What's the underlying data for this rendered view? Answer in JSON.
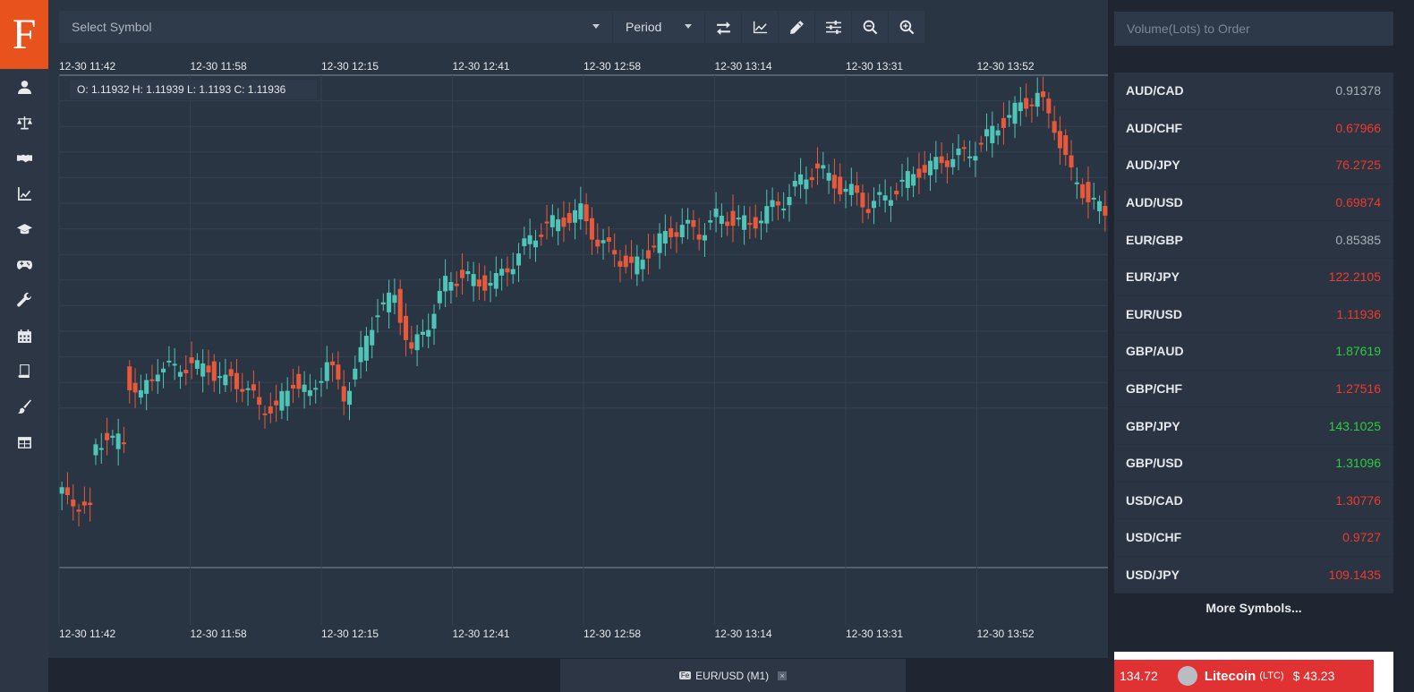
{
  "logo": {
    "letter": "F"
  },
  "sidebar": {
    "items": [
      {
        "icon": "user-icon"
      },
      {
        "icon": "balance-scale-icon"
      },
      {
        "icon": "handshake-icon"
      },
      {
        "icon": "line-chart-icon"
      },
      {
        "icon": "graduation-cap-icon"
      },
      {
        "icon": "gamepad-icon"
      },
      {
        "icon": "wrench-icon"
      },
      {
        "icon": "calendar-icon"
      },
      {
        "icon": "book-icon"
      },
      {
        "icon": "paint-brush-icon"
      },
      {
        "icon": "table-icon"
      }
    ]
  },
  "toolbar": {
    "symbol_placeholder": "Select Symbol",
    "period_label": "Period",
    "buttons": [
      {
        "icon": "swap-arrows-icon"
      },
      {
        "icon": "area-chart-icon"
      },
      {
        "icon": "pencil-icon"
      },
      {
        "icon": "sliders-icon"
      },
      {
        "icon": "zoom-out-icon"
      },
      {
        "icon": "zoom-in-icon"
      }
    ]
  },
  "chart": {
    "ohlc_text": "O: 1.11932 H: 1.11939 L: 1.1193 C: 1.11936",
    "tab_label": "EUR/USD (M1)",
    "tab_badge": "Fe",
    "tab_close": "×",
    "colors": {
      "up": "#4ec5b6",
      "down": "#e8583a",
      "bg": "#2a3544",
      "grid": "#34404f",
      "line": "#7e8b99"
    }
  },
  "chart_data": {
    "type": "candlestick",
    "series_name": "EUR/USD (M1)",
    "x_tick_labels": [
      "12-30 11:42",
      "12-30 11:58",
      "12-30 12:15",
      "12-30 12:41",
      "12-30 12:58",
      "12-30 13:14",
      "12-30 13:31",
      "12-30 13:52"
    ],
    "y_axis_visible": false,
    "grid": true,
    "last_candle": {
      "open": 1.11932,
      "high": 1.11939,
      "low": 1.1193,
      "close": 1.11936
    },
    "relative_ohlc": [
      [
        -0.13,
        -0.24,
        -0.24,
        -0.15
      ],
      [
        -0.16,
        -0.22,
        -0.22,
        -0.2
      ],
      [
        0.03,
        0.06,
        0.08,
        0.08
      ],
      [
        0.06,
        0.31,
        0.3,
        0.06
      ],
      [
        0.3,
        0.3,
        0.22,
        0.22
      ],
      [
        0.22,
        0.25,
        0.33,
        0.33
      ],
      [
        0.33,
        0.36,
        0.45,
        0.32
      ],
      [
        0.32,
        0.36,
        0.36,
        0.34
      ],
      [
        0.32,
        0.34,
        0.33,
        0.33
      ],
      [
        0.32,
        0.3,
        0.34,
        0.27
      ],
      [
        0.3,
        0.31,
        0.21,
        0.26
      ],
      [
        0.26,
        0.33,
        0.25,
        0.19
      ],
      [
        0.19,
        0.23,
        0.17,
        0.17
      ],
      [
        0.18,
        0.28,
        0.32,
        0.28
      ],
      [
        0.28,
        0.27,
        0.22,
        0.22
      ],
      [
        0.22,
        0.34,
        0.45,
        0.35
      ],
      [
        0.35,
        0.38,
        0.33,
        0.22
      ],
      [
        0.22,
        0.36,
        0.35,
        0.37
      ],
      [
        0.37,
        0.39,
        0.49,
        0.54
      ],
      [
        0.54,
        0.6,
        0.51,
        0.58
      ],
      [
        0.58,
        0.57,
        0.44,
        0.38
      ],
      [
        0.38,
        0.38,
        0.38,
        0.49
      ],
      [
        0.49,
        0.51,
        0.54,
        0.63
      ],
      [
        0.63,
        0.66,
        0.59,
        0.66
      ],
      [
        0.66,
        0.66,
        0.63,
        0.63
      ],
      [
        0.63,
        0.63,
        0.58,
        0.64
      ],
      [
        0.64,
        0.71,
        0.69,
        0.71
      ],
      [
        0.71,
        0.76,
        0.73,
        0.79
      ],
      [
        0.79,
        0.8,
        0.78,
        0.84
      ],
      [
        0.84,
        0.84,
        0.86,
        0.86
      ],
      [
        0.86,
        0.86,
        0.89,
        0.89
      ],
      [
        0.89,
        0.86,
        0.8,
        0.78
      ],
      [
        0.78,
        0.73,
        0.73,
        0.74
      ],
      [
        0.74,
        0.72,
        0.68,
        0.68
      ],
      [
        0.68,
        0.68,
        0.76,
        0.75
      ],
      [
        0.75,
        0.78,
        0.78,
        0.8
      ],
      [
        0.8,
        0.8,
        0.83,
        0.84
      ],
      [
        0.84,
        0.83,
        0.85,
        0.81
      ],
      [
        0.81,
        0.83,
        0.81,
        0.87
      ],
      [
        0.87,
        0.86,
        0.86,
        0.86
      ],
      [
        0.86,
        0.87,
        0.84,
        0.84
      ],
      [
        0.84,
        0.86,
        0.86,
        0.89
      ],
      [
        0.89,
        0.92,
        0.89,
        0.93
      ],
      [
        0.93,
        0.95,
        0.98,
        1.0
      ],
      [
        1.0,
        1.03,
        1.0,
        1.05
      ],
      [
        1.05,
        1.05,
        1.03,
        0.99
      ],
      [
        0.99,
        0.99,
        0.97,
        0.96
      ],
      [
        0.96,
        0.92,
        0.9,
        0.91
      ],
      [
        0.91,
        0.89,
        0.92,
        0.94
      ],
      [
        0.94,
        0.95,
        0.96,
        0.99
      ],
      [
        0.99,
        1.02,
        0.98,
        1.04
      ],
      [
        1.04,
        1.05,
        1.03,
        1.06
      ],
      [
        1.06,
        1.07,
        1.05,
        1.09
      ],
      [
        1.09,
        1.1,
        1.07,
        1.1
      ],
      [
        1.1,
        1.13,
        1.11,
        1.16
      ],
      [
        1.16,
        1.18,
        1.17,
        1.22
      ],
      [
        1.22,
        1.25,
        1.23,
        1.27
      ],
      [
        1.27,
        1.3,
        1.28,
        1.31
      ],
      [
        1.31,
        1.3,
        1.22,
        1.2
      ],
      [
        1.2,
        1.13,
        1.05,
        1.02
      ],
      [
        1.02,
        1.0,
        0.97,
        0.94
      ],
      [
        0.94,
        0.92,
        0.89,
        0.88
      ]
    ]
  },
  "order_panel": {
    "volume_placeholder": "Volume(Lots) to Order",
    "more_symbols_label": "More Symbols...",
    "symbols": [
      {
        "name": "AUD/CAD",
        "price": "0.91378",
        "color": "#a9b0b8"
      },
      {
        "name": "AUD/CHF",
        "price": "0.67966",
        "color": "#f0392b"
      },
      {
        "name": "AUD/JPY",
        "price": "76.2725",
        "color": "#f0392b"
      },
      {
        "name": "AUD/USD",
        "price": "0.69874",
        "color": "#f0392b"
      },
      {
        "name": "EUR/GBP",
        "price": "0.85385",
        "color": "#a9b0b8"
      },
      {
        "name": "EUR/JPY",
        "price": "122.2105",
        "color": "#f0392b"
      },
      {
        "name": "EUR/USD",
        "price": "1.11936",
        "color": "#f0392b"
      },
      {
        "name": "GBP/AUD",
        "price": "1.87619",
        "color": "#2ecc40"
      },
      {
        "name": "GBP/CHF",
        "price": "1.27516",
        "color": "#f0392b"
      },
      {
        "name": "GBP/JPY",
        "price": "143.1025",
        "color": "#2ecc40"
      },
      {
        "name": "GBP/USD",
        "price": "1.31096",
        "color": "#2ecc40"
      },
      {
        "name": "USD/CAD",
        "price": "1.30776",
        "color": "#f0392b"
      },
      {
        "name": "USD/CHF",
        "price": "0.9727",
        "color": "#f0392b"
      },
      {
        "name": "USD/JPY",
        "price": "109.1435",
        "color": "#f0392b"
      }
    ]
  },
  "ticker": {
    "prev_value": "134.72",
    "coin_name": "Litecoin",
    "coin_symbol": "(LTC)",
    "coin_price": "$ 43.23"
  }
}
